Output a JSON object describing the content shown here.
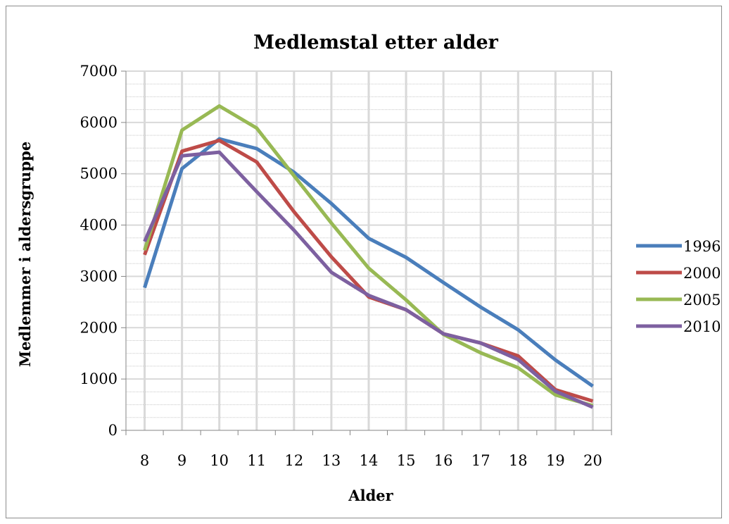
{
  "chart_data": {
    "type": "line",
    "title": "Medlemstal etter alder",
    "xlabel": "Alder",
    "ylabel": "Medlemmer i aldersgruppe",
    "categories": [
      "8",
      "9",
      "10",
      "11",
      "12",
      "13",
      "14",
      "15",
      "16",
      "17",
      "18",
      "19",
      "20"
    ],
    "ylim": [
      0,
      7000
    ],
    "yticks": [
      "0",
      "1000",
      "2000",
      "3000",
      "4000",
      "5000",
      "6000",
      "7000"
    ],
    "grid": true,
    "legend_position": "right",
    "series": [
      {
        "name": "1996",
        "color": "#4a7ebb",
        "values": [
          2780,
          5100,
          5680,
          5490,
          5030,
          4420,
          3740,
          3370,
          2880,
          2400,
          1960,
          1370,
          860
        ]
      },
      {
        "name": "2000",
        "color": "#be4b48",
        "values": [
          3420,
          5440,
          5650,
          5230,
          4260,
          3380,
          2600,
          2350,
          1880,
          1700,
          1450,
          790,
          570
        ]
      },
      {
        "name": "2005",
        "color": "#98b954",
        "values": [
          3510,
          5850,
          6320,
          5890,
          4960,
          4040,
          3160,
          2540,
          1870,
          1510,
          1220,
          690,
          480
        ]
      },
      {
        "name": "2010",
        "color": "#7d60a0",
        "values": [
          3680,
          5350,
          5420,
          4650,
          3900,
          3080,
          2630,
          2350,
          1880,
          1700,
          1380,
          760,
          450
        ]
      }
    ]
  }
}
